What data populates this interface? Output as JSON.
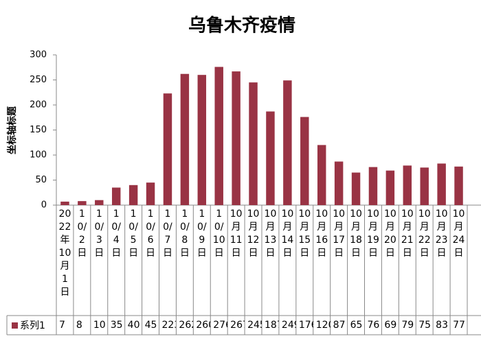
{
  "chart_data": {
    "type": "bar",
    "title": "乌鲁木齐疫情",
    "y_label": "坐标轴标题",
    "categories": [
      "2022年10月1日",
      "10/2日",
      "10/3日",
      "10/4日",
      "10/5日",
      "10/6日",
      "10/7日",
      "10/8日",
      "10/9日",
      "10/10日",
      "10月11日",
      "10月12日",
      "10月13日",
      "10月14日",
      "10月15日",
      "10月16日",
      "10月17日",
      "10月18日",
      "10月19日",
      "10月20日",
      "10月21日",
      "10月22日",
      "10月23日",
      "10月24日"
    ],
    "series": [
      {
        "name": "系列1",
        "color": "#993344",
        "values": [
          7,
          8,
          10,
          35,
          40,
          45,
          223,
          262,
          260,
          276,
          267,
          245,
          187,
          249,
          176,
          120,
          87,
          65,
          76,
          69,
          79,
          75,
          83,
          77
        ]
      }
    ],
    "ylim": [
      0,
      300
    ],
    "yticks": [
      0,
      50,
      100,
      150,
      200,
      250,
      300
    ],
    "grid": false,
    "data_table": true
  }
}
